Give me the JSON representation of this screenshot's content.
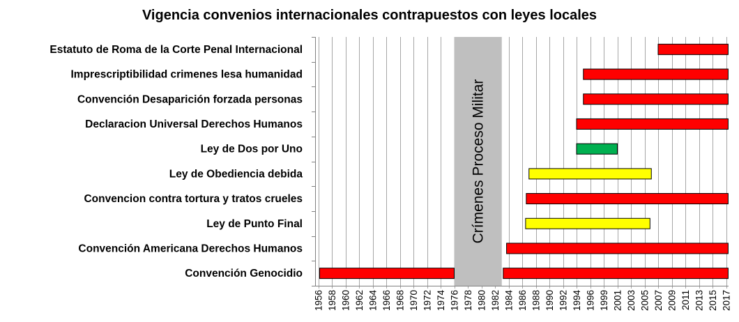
{
  "chart_data": {
    "type": "bar",
    "orientation": "horizontal-range",
    "title": "Vigencia convenios internacionales contrapuestos con leyes locales",
    "xlabel": "",
    "ylabel": "",
    "grid": true,
    "x_ticks": [
      "1956",
      "1958",
      "1960",
      "1962",
      "1964",
      "1966",
      "1968",
      "1970",
      "1972",
      "1974",
      "1976",
      "1978",
      "1980",
      "1982",
      "1984",
      "1986",
      "1988",
      "1990",
      "1992",
      "1994",
      "1996",
      "1999",
      "2001",
      "2003",
      "2005",
      "2007",
      "2009",
      "2011",
      "2013",
      "2015",
      "2017"
    ],
    "x_range_index": [
      0,
      30.3
    ],
    "categories": [
      "Estatuto de Roma de la Corte Penal Internacional",
      "Imprescriptibilidad crimenes lesa humanidad",
      "Convención Desaparición forzada personas",
      "Declaracion Universal Derechos Humanos",
      "Ley de Dos por Uno",
      "Ley de Obediencia debida",
      "Convencion contra tortura y tratos crueles",
      "Ley de Punto Final",
      "Convención Americana Derechos Humanos",
      "Convención Genocidio"
    ],
    "series": [
      {
        "bars": [
          {
            "row": 0,
            "start": 2007,
            "end": 2017.3,
            "color": "#ff0000"
          },
          {
            "row": 1,
            "start": 1995,
            "end": 2017.3,
            "color": "#ff0000"
          },
          {
            "row": 2,
            "start": 1995,
            "end": 2017.3,
            "color": "#ff0000"
          },
          {
            "row": 3,
            "start": 1994,
            "end": 2017.3,
            "color": "#ff0000"
          },
          {
            "row": 4,
            "start": 1994,
            "end": 2001,
            "color": "#00b050"
          },
          {
            "row": 5,
            "start": 1987,
            "end": 2006,
            "color": "#ffff00"
          },
          {
            "row": 6,
            "start": 1986.6,
            "end": 2017.3,
            "color": "#ff0000"
          },
          {
            "row": 7,
            "start": 1986.5,
            "end": 2005.8,
            "color": "#ffff00"
          },
          {
            "row": 8,
            "start": 1983.7,
            "end": 2017.3,
            "color": "#ff0000"
          },
          {
            "row": 9,
            "start": 1956.2,
            "end": 2017.3,
            "color": "#ff0000"
          }
        ]
      }
    ],
    "band": {
      "label": "Crímenes Proceso Militar",
      "start": 1976,
      "end": 1983,
      "color": "#bfbfbf"
    }
  }
}
